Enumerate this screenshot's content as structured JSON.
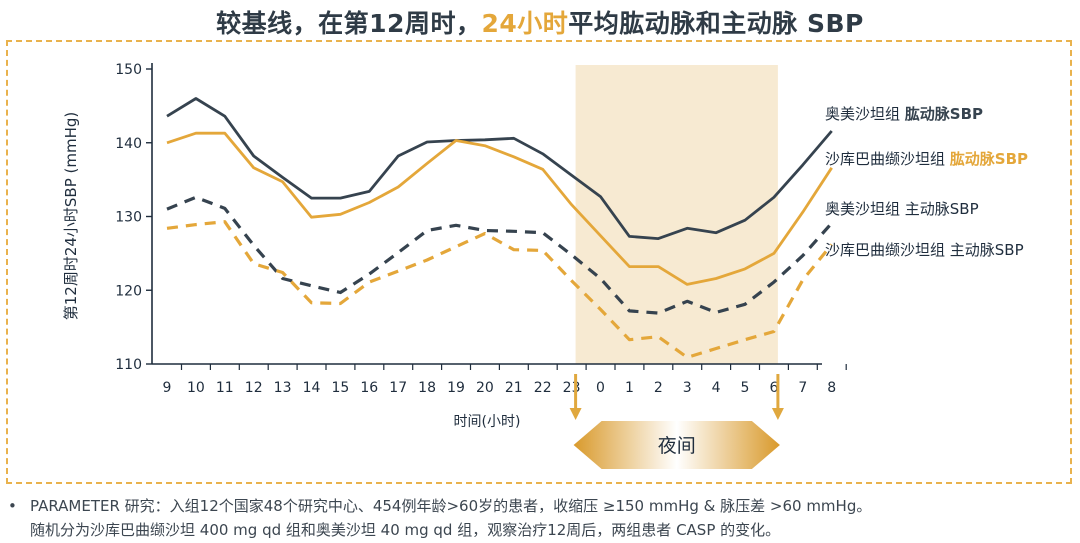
{
  "title": {
    "part1": "较基线，在第12周时，",
    "highlight": "24小时",
    "part2": "平均肱动脉和主动脉 SBP"
  },
  "colors": {
    "dark_series": "#36434f",
    "gold_series": "#e4a73a",
    "night_band": "#f7ead2",
    "arrow": "#e0a83e",
    "axis": "#1f2d3d"
  },
  "chart_data": {
    "type": "line",
    "x": [
      "9",
      "10",
      "11",
      "12",
      "13",
      "14",
      "15",
      "16",
      "17",
      "18",
      "19",
      "20",
      "21",
      "22",
      "23",
      "0",
      "1",
      "2",
      "3",
      "4",
      "5",
      "6",
      "7",
      "8"
    ],
    "xlabel": "时间(小时)",
    "ylabel": "第12周时24小时SBP (mmHg)",
    "ylim": [
      110,
      150
    ],
    "yticks": [
      110,
      120,
      130,
      140,
      150
    ],
    "night_band": {
      "from": "23",
      "to": "6",
      "label": "夜间"
    },
    "series": [
      {
        "name_prefix": "奥美沙坦组 ",
        "name_suffix": "肱动脉SBP",
        "suffix_bold": true,
        "color": "#36434f",
        "style": "solid",
        "values": [
          143.6,
          146.0,
          143.6,
          138.2,
          135.3,
          132.5,
          132.5,
          133.4,
          138.2,
          140.1,
          140.3,
          140.4,
          140.6,
          138.5,
          135.6,
          132.7,
          127.3,
          127.0,
          128.4,
          127.8,
          129.5,
          132.6,
          137.0,
          141.6
        ]
      },
      {
        "name_prefix": "沙库巴曲缬沙坦组 ",
        "name_suffix": "肱动脉SBP",
        "suffix_bold": true,
        "color": "#e4a73a",
        "style": "solid",
        "values": [
          140.0,
          141.3,
          141.3,
          136.6,
          134.7,
          129.9,
          130.3,
          131.9,
          134.0,
          137.2,
          140.3,
          139.6,
          138.1,
          136.4,
          131.6,
          127.4,
          123.2,
          123.2,
          120.8,
          121.6,
          122.9,
          125.0,
          130.6,
          136.6
        ]
      },
      {
        "name_prefix": "奥美沙坦组 ",
        "name_suffix": "主动脉SBP",
        "suffix_bold": false,
        "color": "#36434f",
        "style": "dashed",
        "values": [
          131.0,
          132.6,
          131.1,
          126.1,
          121.6,
          120.6,
          119.7,
          122.2,
          125.1,
          128.1,
          128.8,
          128.1,
          128.0,
          127.8,
          124.8,
          121.6,
          117.2,
          116.9,
          118.5,
          117.0,
          118.1,
          121.1,
          124.7,
          129.1
        ]
      },
      {
        "name_prefix": "沙库巴曲缬沙坦组 ",
        "name_suffix": "主动脉SBP",
        "suffix_bold": false,
        "color": "#e4a73a",
        "style": "dashed",
        "values": [
          128.4,
          128.9,
          129.3,
          123.6,
          122.4,
          118.3,
          118.2,
          121.1,
          122.6,
          124.1,
          125.9,
          127.7,
          125.5,
          125.4,
          121.3,
          117.4,
          113.3,
          113.7,
          110.9,
          112.1,
          113.3,
          114.4,
          121.4,
          126.2
        ]
      }
    ]
  },
  "footnote": {
    "bullet": "•",
    "line1": "PARAMETER 研究：入组12个国家48个研究中心、454例年龄>60岁的患者，收缩压 ≥150 mmHg & 脉压差 >60 mmHg。",
    "line2": "随机分为沙库巴曲缬沙坦 400 mg qd 组和奥美沙坦 40 mg qd 组，观察治疗12周后，两组患者 CASP 的变化。"
  }
}
